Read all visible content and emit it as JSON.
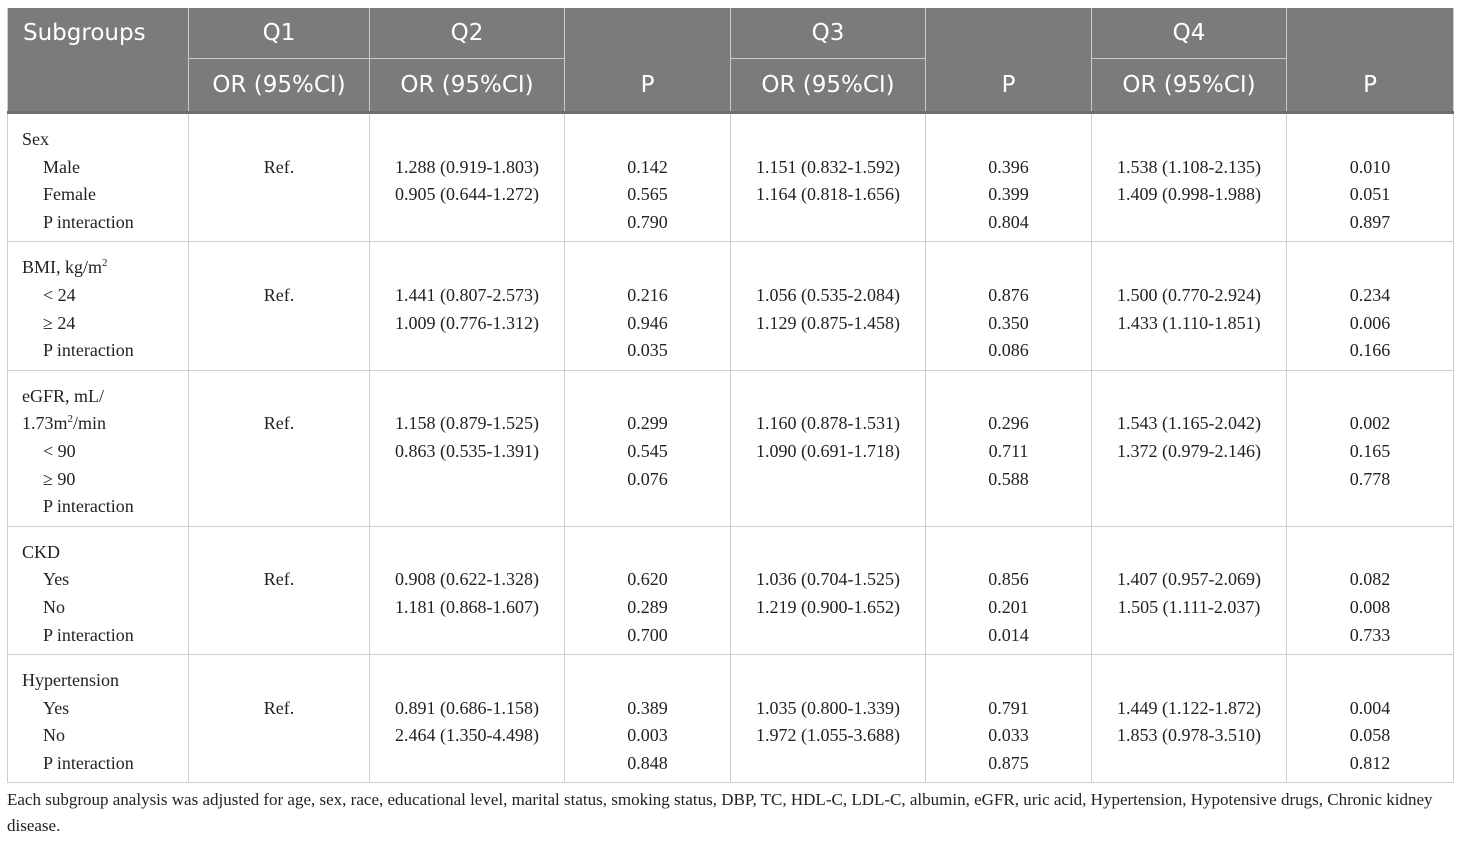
{
  "header": {
    "row1": [
      "Subgroups",
      "Q1",
      "Q2",
      "",
      "Q3",
      "",
      "Q4",
      ""
    ],
    "row2": [
      "",
      "OR (95%CI)",
      "OR (95%CI)",
      "P",
      "OR (95%CI)",
      "P",
      "OR (95%CI)",
      "P"
    ]
  },
  "groups": [
    {
      "labels": [
        "Sex",
        "Male",
        "Female",
        "P interaction"
      ],
      "indent": [
        false,
        true,
        true,
        true
      ],
      "q1": [
        "",
        "Ref."
      ],
      "q2_or": [
        "",
        "1.288 (0.919-1.803)",
        "0.905 (0.644-1.272)"
      ],
      "q2_p": [
        "",
        "0.142",
        "0.565",
        "0.790"
      ],
      "q3_or": [
        "",
        "1.151 (0.832-1.592)",
        "1.164 (0.818-1.656)"
      ],
      "q3_p": [
        "",
        "0.396",
        "0.399",
        "0.804"
      ],
      "q4_or": [
        "",
        "1.538 (1.108-2.135)",
        "1.409 (0.998-1.988)"
      ],
      "q4_p": [
        "",
        "0.010",
        "0.051",
        "0.897"
      ]
    },
    {
      "labels": [
        "BMI, kg/m",
        "< 24",
        "≥ 24",
        "P interaction"
      ],
      "label_sup": [
        "2",
        "",
        "",
        ""
      ],
      "indent": [
        false,
        true,
        true,
        true
      ],
      "q1": [
        "",
        "Ref."
      ],
      "q2_or": [
        "",
        "1.441 (0.807-2.573)",
        "1.009 (0.776-1.312)"
      ],
      "q2_p": [
        "",
        "0.216",
        "0.946",
        "0.035"
      ],
      "q3_or": [
        "",
        "1.056 (0.535-2.084)",
        "1.129 (0.875-1.458)"
      ],
      "q3_p": [
        "",
        "0.876",
        "0.350",
        "0.086"
      ],
      "q4_or": [
        "",
        "1.500 (0.770-2.924)",
        "1.433 (1.110-1.851)"
      ],
      "q4_p": [
        "",
        "0.234",
        "0.006",
        "0.166"
      ]
    },
    {
      "labels": [
        "eGFR, mL/",
        "1.73m",
        "< 90",
        "≥ 90",
        "P interaction"
      ],
      "label_sup": [
        "",
        "2",
        "",
        "",
        ""
      ],
      "label_after": [
        "",
        "/min",
        "",
        "",
        ""
      ],
      "indent": [
        false,
        false,
        true,
        true,
        true
      ],
      "q1": [
        "",
        "Ref."
      ],
      "q2_or": [
        "",
        "1.158 (0.879-1.525)",
        "0.863 (0.535-1.391)"
      ],
      "q2_p": [
        "",
        "0.299",
        "0.545",
        "0.076"
      ],
      "q3_or": [
        "",
        "1.160 (0.878-1.531)",
        "1.090 (0.691-1.718)"
      ],
      "q3_p": [
        "",
        "0.296",
        "0.711",
        "0.588"
      ],
      "q4_or": [
        "",
        "1.543 (1.165-2.042)",
        "1.372 (0.979-2.146)"
      ],
      "q4_p": [
        "",
        "0.002",
        "0.165",
        "0.778"
      ]
    },
    {
      "labels": [
        "CKD",
        "Yes",
        "No",
        "P interaction"
      ],
      "indent": [
        false,
        true,
        true,
        true
      ],
      "q1": [
        "",
        "Ref."
      ],
      "q2_or": [
        "",
        "0.908 (0.622-1.328)",
        "1.181 (0.868-1.607)"
      ],
      "q2_p": [
        "",
        "0.620",
        "0.289",
        "0.700"
      ],
      "q3_or": [
        "",
        "1.036 (0.704-1.525)",
        "1.219 (0.900-1.652)"
      ],
      "q3_p": [
        "",
        "0.856",
        "0.201",
        "0.014"
      ],
      "q4_or": [
        "",
        "1.407 (0.957-2.069)",
        "1.505 (1.111-2.037)"
      ],
      "q4_p": [
        "",
        "0.082",
        "0.008",
        "0.733"
      ]
    },
    {
      "labels": [
        "Hypertension",
        "Yes",
        "No",
        "P interaction"
      ],
      "indent": [
        false,
        true,
        true,
        true
      ],
      "q1": [
        "",
        "Ref."
      ],
      "q2_or": [
        "",
        "0.891 (0.686-1.158)",
        "2.464 (1.350-4.498)"
      ],
      "q2_p": [
        "",
        "0.389",
        "0.003",
        "0.848"
      ],
      "q3_or": [
        "",
        "1.035 (0.800-1.339)",
        "1.972 (1.055-3.688)"
      ],
      "q3_p": [
        "",
        "0.791",
        "0.033",
        "0.875"
      ],
      "q4_or": [
        "",
        "1.449 (1.122-1.872)",
        "1.853 (0.978-3.510)"
      ],
      "q4_p": [
        "",
        "0.004",
        "0.058",
        "0.812"
      ]
    }
  ],
  "footnote": "Each subgroup analysis was adjusted for age, sex, race, educational level, marital status, smoking status, DBP, TC, HDL-C, LDL-C, albumin, eGFR, uric acid, Hypertension, Hypotensive drugs, Chronic kidney disease."
}
